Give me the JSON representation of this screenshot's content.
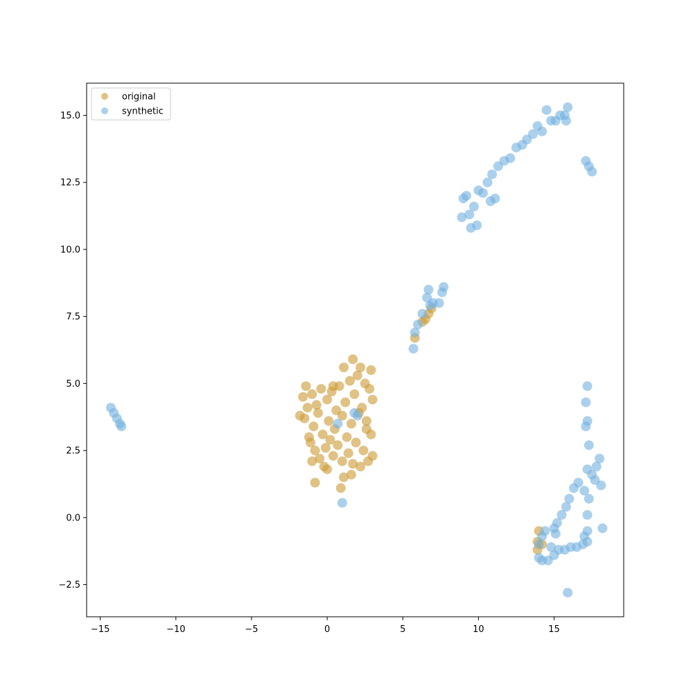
{
  "chart_data": {
    "type": "scatter",
    "title": "",
    "xlabel": "",
    "ylabel": "",
    "xlim": [
      -15.9,
      19.6
    ],
    "ylim": [
      -3.7,
      16.2
    ],
    "xticks": [
      -15,
      -10,
      -5,
      0,
      5,
      10,
      15
    ],
    "yticks": [
      -2.5,
      0.0,
      2.5,
      5.0,
      7.5,
      10.0,
      12.5,
      15.0
    ],
    "xtick_labels": [
      "−15",
      "−10",
      "−5",
      "0",
      "5",
      "10",
      "15"
    ],
    "ytick_labels": [
      "−2.5",
      "0.0",
      "2.5",
      "5.0",
      "7.5",
      "10.0",
      "12.5",
      "15.0"
    ],
    "grid": false,
    "legend": {
      "placement": "top-left"
    },
    "series": [
      {
        "name": "original",
        "color": "#cc9933",
        "points": [
          [
            -1.8,
            3.8
          ],
          [
            -1.6,
            4.5
          ],
          [
            -1.5,
            3.7
          ],
          [
            -1.4,
            4.9
          ],
          [
            -1.3,
            4.1
          ],
          [
            -1.2,
            3.0
          ],
          [
            -1.1,
            2.8
          ],
          [
            -1.0,
            4.6
          ],
          [
            -0.9,
            3.4
          ],
          [
            -0.8,
            2.5
          ],
          [
            -0.8,
            1.3
          ],
          [
            -0.7,
            4.2
          ],
          [
            -0.6,
            3.9
          ],
          [
            -0.5,
            2.2
          ],
          [
            -0.4,
            4.8
          ],
          [
            -0.3,
            3.1
          ],
          [
            -0.2,
            1.9
          ],
          [
            -0.1,
            2.6
          ],
          [
            0.0,
            4.4
          ],
          [
            0.1,
            3.6
          ],
          [
            0.2,
            2.9
          ],
          [
            0.3,
            4.7
          ],
          [
            0.4,
            2.3
          ],
          [
            0.5,
            3.3
          ],
          [
            0.6,
            4.0
          ],
          [
            0.7,
            2.7
          ],
          [
            0.8,
            4.9
          ],
          [
            0.9,
            1.1
          ],
          [
            1.0,
            3.8
          ],
          [
            1.0,
            2.1
          ],
          [
            1.1,
            1.5
          ],
          [
            1.1,
            5.6
          ],
          [
            1.2,
            4.3
          ],
          [
            1.3,
            3.0
          ],
          [
            1.4,
            2.4
          ],
          [
            1.5,
            5.1
          ],
          [
            1.6,
            3.5
          ],
          [
            1.7,
            5.9
          ],
          [
            1.7,
            2.0
          ],
          [
            1.8,
            4.6
          ],
          [
            1.9,
            2.8
          ],
          [
            2.0,
            5.3
          ],
          [
            2.1,
            3.9
          ],
          [
            2.2,
            1.9
          ],
          [
            2.3,
            4.1
          ],
          [
            2.4,
            2.5
          ],
          [
            2.5,
            5.0
          ],
          [
            2.6,
            3.3
          ],
          [
            2.7,
            2.1
          ],
          [
            2.8,
            4.8
          ],
          [
            2.9,
            3.1
          ],
          [
            2.9,
            5.5
          ],
          [
            3.0,
            2.3
          ],
          [
            3.0,
            4.4
          ],
          [
            2.6,
            3.6
          ],
          [
            0.4,
            4.9
          ],
          [
            -1.0,
            2.1
          ],
          [
            0.0,
            1.8
          ],
          [
            1.6,
            1.6
          ],
          [
            2.2,
            5.6
          ],
          [
            6.3,
            7.3
          ],
          [
            6.5,
            7.4
          ],
          [
            6.7,
            7.6
          ],
          [
            6.9,
            7.8
          ],
          [
            5.8,
            6.7
          ],
          [
            14.0,
            -0.5
          ],
          [
            13.9,
            -0.9
          ],
          [
            13.9,
            -1.2
          ],
          [
            14.2,
            -1.0
          ]
        ]
      },
      {
        "name": "synthetic",
        "color": "#73b0e0",
        "points": [
          [
            -14.3,
            4.1
          ],
          [
            -14.1,
            3.9
          ],
          [
            -13.9,
            3.7
          ],
          [
            -13.7,
            3.5
          ],
          [
            -13.6,
            3.4
          ],
          [
            1.0,
            0.55
          ],
          [
            1.8,
            3.9
          ],
          [
            2.0,
            3.8
          ],
          [
            0.7,
            3.5
          ],
          [
            5.7,
            6.3
          ],
          [
            5.8,
            6.9
          ],
          [
            6.0,
            7.2
          ],
          [
            6.3,
            7.6
          ],
          [
            6.6,
            8.2
          ],
          [
            6.7,
            8.5
          ],
          [
            7.0,
            8.0
          ],
          [
            7.4,
            8.0
          ],
          [
            7.6,
            8.4
          ],
          [
            7.7,
            8.6
          ],
          [
            6.8,
            7.9
          ],
          [
            8.9,
            11.2
          ],
          [
            9.0,
            11.9
          ],
          [
            9.2,
            12.0
          ],
          [
            9.4,
            11.3
          ],
          [
            9.5,
            10.8
          ],
          [
            9.7,
            11.6
          ],
          [
            9.9,
            10.9
          ],
          [
            10.0,
            12.2
          ],
          [
            10.3,
            12.1
          ],
          [
            10.6,
            12.5
          ],
          [
            10.9,
            12.8
          ],
          [
            10.8,
            11.8
          ],
          [
            11.1,
            11.9
          ],
          [
            11.3,
            13.1
          ],
          [
            11.7,
            13.3
          ],
          [
            12.1,
            13.4
          ],
          [
            12.5,
            13.8
          ],
          [
            12.9,
            13.9
          ],
          [
            13.2,
            14.1
          ],
          [
            13.6,
            14.3
          ],
          [
            13.9,
            14.6
          ],
          [
            14.2,
            14.4
          ],
          [
            14.5,
            15.2
          ],
          [
            14.8,
            14.8
          ],
          [
            15.1,
            14.8
          ],
          [
            15.4,
            15.0
          ],
          [
            15.7,
            15.0
          ],
          [
            15.9,
            15.3
          ],
          [
            15.8,
            14.8
          ],
          [
            17.1,
            13.3
          ],
          [
            17.3,
            13.1
          ],
          [
            17.5,
            12.9
          ],
          [
            17.2,
            4.9
          ],
          [
            17.1,
            4.3
          ],
          [
            17.2,
            3.6
          ],
          [
            17.1,
            3.4
          ],
          [
            17.3,
            2.7
          ],
          [
            17.2,
            1.8
          ],
          [
            17.5,
            1.6
          ],
          [
            17.8,
            1.9
          ],
          [
            18.0,
            2.2
          ],
          [
            18.1,
            1.2
          ],
          [
            17.7,
            1.4
          ],
          [
            17.3,
            0.7
          ],
          [
            17.2,
            0.1
          ],
          [
            17.0,
            1.0
          ],
          [
            16.6,
            1.3
          ],
          [
            16.3,
            1.1
          ],
          [
            16.0,
            0.7
          ],
          [
            15.8,
            0.4
          ],
          [
            15.5,
            0.1
          ],
          [
            15.2,
            -0.2
          ],
          [
            15.0,
            -0.4
          ],
          [
            15.1,
            -0.6
          ],
          [
            17.2,
            -0.5
          ],
          [
            17.2,
            -0.9
          ],
          [
            16.9,
            -1.0
          ],
          [
            16.5,
            -1.1
          ],
          [
            16.1,
            -1.1
          ],
          [
            15.7,
            -1.2
          ],
          [
            15.3,
            -1.2
          ],
          [
            15.0,
            -1.4
          ],
          [
            14.6,
            -1.6
          ],
          [
            14.2,
            -1.6
          ],
          [
            14.0,
            -1.5
          ],
          [
            14.0,
            -1.0
          ],
          [
            14.2,
            -0.7
          ],
          [
            14.4,
            -0.5
          ],
          [
            18.2,
            -0.4
          ],
          [
            15.9,
            -2.8
          ],
          [
            14.8,
            -1.1
          ],
          [
            17.0,
            -0.7
          ]
        ]
      }
    ]
  }
}
